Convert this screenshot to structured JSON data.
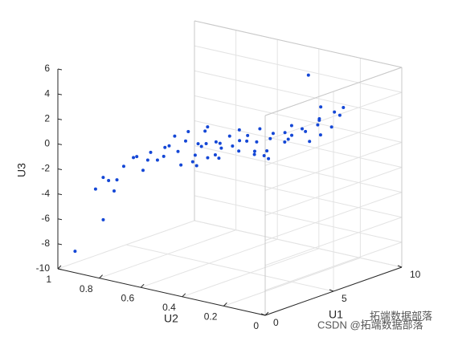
{
  "chart_data": {
    "type": "scatter3",
    "xlabel": "U1",
    "ylabel": "U2",
    "zlabel": "U3",
    "xlim": [
      0,
      10
    ],
    "ylim": [
      0,
      1
    ],
    "zlim": [
      -10,
      6
    ],
    "xticks": [
      0,
      5,
      10
    ],
    "yticks": [
      0,
      0.2,
      0.4,
      0.6,
      0.8,
      1
    ],
    "zticks": [
      -10,
      -8,
      -6,
      -4,
      -2,
      0,
      2,
      4,
      6
    ],
    "grid": true,
    "color": "#1447d6",
    "x": [
      2.0,
      2.5,
      1.8,
      3.0,
      2.2,
      3.5,
      4.0,
      2.8,
      3.2,
      4.5,
      3.8,
      5.0,
      4.2,
      3.5,
      5.5,
      4.8,
      6.0,
      4.0,
      5.2,
      6.5,
      4.5,
      5.8,
      3.8,
      6.2,
      5.0,
      7.0,
      4.6,
      5.5,
      6.8,
      4.2,
      6.0,
      5.2,
      7.2,
      4.8,
      6.5,
      5.6,
      7.5,
      5.0,
      6.2,
      7.0,
      5.4,
      6.8,
      7.8,
      6.0,
      7.2,
      8.0,
      6.5,
      7.6,
      8.2,
      7.0,
      8.5,
      7.8,
      6.8,
      8.0,
      6.2,
      0.5,
      1.5,
      2.6,
      5.8,
      4.4,
      6.6,
      5.2,
      3.0,
      7.4,
      6.0,
      5.0,
      4.0,
      8.4,
      7.2,
      5.6
    ],
    "y": [
      0.95,
      0.92,
      0.9,
      0.88,
      0.86,
      0.85,
      0.83,
      0.82,
      0.8,
      0.78,
      0.77,
      0.75,
      0.74,
      0.72,
      0.7,
      0.7,
      0.68,
      0.67,
      0.65,
      0.64,
      0.62,
      0.6,
      0.6,
      0.58,
      0.57,
      0.55,
      0.54,
      0.52,
      0.5,
      0.5,
      0.48,
      0.47,
      0.45,
      0.44,
      0.42,
      0.41,
      0.4,
      0.38,
      0.37,
      0.35,
      0.34,
      0.32,
      0.3,
      0.3,
      0.28,
      0.26,
      0.25,
      0.24,
      0.22,
      0.2,
      0.2,
      0.18,
      0.18,
      0.15,
      0.2,
      0.95,
      0.88,
      0.9,
      0.66,
      0.58,
      0.44,
      0.62,
      0.75,
      0.36,
      0.52,
      0.66,
      0.7,
      0.3,
      0.5,
      0.74
    ],
    "z": [
      -4.2,
      -3.6,
      -3.0,
      -2.5,
      -3.2,
      -1.8,
      -2.2,
      -1.5,
      -2.6,
      -1.2,
      -1.9,
      -1.6,
      -0.8,
      -1.3,
      -1.9,
      -0.5,
      -1.1,
      -2.0,
      -0.9,
      -1.5,
      -0.3,
      -0.7,
      -1.4,
      -0.2,
      -1.2,
      -0.8,
      0.1,
      -0.5,
      -1.6,
      -0.9,
      0.3,
      -0.6,
      -0.3,
      0.5,
      -0.9,
      0.2,
      -0.5,
      -0.2,
      0.8,
      0.1,
      -0.8,
      0.6,
      -0.2,
      1.2,
      0.9,
      0.4,
      1.5,
      1.8,
      1.1,
      2.3,
      2.0,
      2.6,
      3.4,
      3.0,
      6.1,
      -8.6,
      -6.2,
      -4.4,
      0.4,
      0.9,
      -1.4,
      -1.7,
      -0.9,
      1.0,
      0.6,
      -2.4,
      0.2,
      0.9,
      0.3,
      -0.2
    ],
    "watermark": [
      "拓端数据部落",
      "CSDN @拓端数据部落"
    ]
  }
}
